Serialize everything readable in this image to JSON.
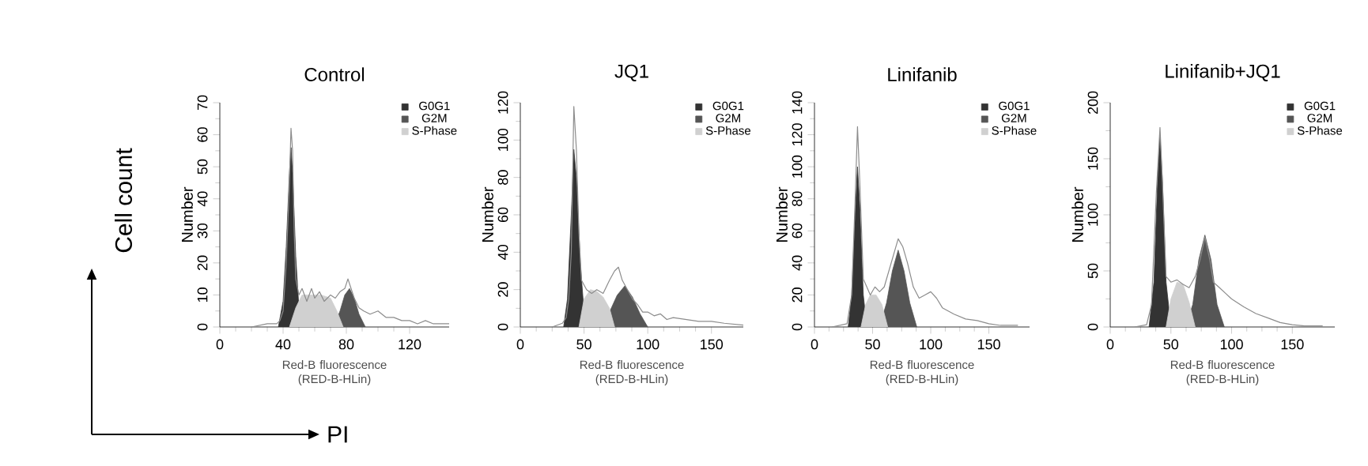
{
  "chart_data": [
    {
      "type": "area",
      "title": "Control",
      "xlabel": "Red-B fluorescence (RED-B-HLin)",
      "ylabel": "Number",
      "xlim": [
        0,
        145
      ],
      "ylim": [
        0,
        70
      ],
      "xticks": [
        0,
        40,
        80,
        120
      ],
      "yticks": [
        0,
        10,
        20,
        30,
        40,
        50,
        60,
        70
      ],
      "legend": "top right",
      "annotations": [
        "Cell count",
        "PI"
      ],
      "series": [
        {
          "name": "G0G1",
          "color": "#333333",
          "x": [
            37,
            40,
            42,
            44,
            45,
            46,
            48,
            50,
            52
          ],
          "values": [
            0,
            8,
            25,
            48,
            56,
            48,
            22,
            6,
            0
          ]
        },
        {
          "name": "G2M",
          "color": "#555555",
          "x": [
            72,
            76,
            79,
            82,
            85,
            88,
            92
          ],
          "values": [
            0,
            5,
            10,
            12,
            9,
            4,
            0
          ]
        },
        {
          "name": "S-Phase",
          "color": "#d0d0d0",
          "x": [
            44,
            48,
            52,
            58,
            64,
            70,
            74,
            78
          ],
          "values": [
            0,
            6,
            10,
            10,
            10,
            9,
            5,
            0
          ]
        },
        {
          "type": "line",
          "color": "#8c8c8c",
          "x": [
            20,
            30,
            36,
            38,
            40,
            42,
            44,
            45,
            46,
            47,
            48,
            50,
            52,
            55,
            58,
            60,
            63,
            66,
            70,
            73,
            76,
            79,
            81,
            83,
            85,
            88,
            91,
            95,
            100,
            105,
            110,
            115,
            120,
            125,
            130,
            135,
            145
          ],
          "values": [
            0,
            1,
            1,
            2,
            5,
            20,
            45,
            62,
            55,
            30,
            15,
            10,
            12,
            8,
            12,
            9,
            11,
            8,
            10,
            9,
            11,
            12,
            15,
            12,
            9,
            6,
            5,
            4,
            5,
            3,
            3,
            2,
            2,
            1,
            2,
            1,
            1
          ]
        }
      ]
    },
    {
      "type": "area",
      "title": "JQ1",
      "xlabel": "Red-B fluorescence (RED-B-HLin)",
      "ylabel": "Number",
      "xlim": [
        0,
        175
      ],
      "ylim": [
        0,
        120
      ],
      "xticks": [
        0,
        50,
        100,
        150
      ],
      "yticks": [
        0,
        20,
        40,
        60,
        80,
        100,
        120
      ],
      "legend": "top right",
      "series": [
        {
          "name": "G0G1",
          "color": "#333333",
          "x": [
            34,
            37,
            40,
            42,
            44,
            47,
            50,
            53
          ],
          "values": [
            0,
            15,
            60,
            95,
            80,
            35,
            8,
            0
          ]
        },
        {
          "name": "G2M",
          "color": "#555555",
          "x": [
            64,
            70,
            76,
            82,
            88,
            94,
            100
          ],
          "values": [
            0,
            8,
            17,
            22,
            16,
            7,
            0
          ]
        },
        {
          "name": "S-Phase",
          "color": "#d0d0d0",
          "x": [
            46,
            50,
            55,
            60,
            65,
            70,
            74
          ],
          "values": [
            0,
            15,
            20,
            19,
            16,
            10,
            0
          ]
        },
        {
          "type": "line",
          "color": "#8c8c8c",
          "x": [
            25,
            33,
            36,
            38,
            40,
            42,
            44,
            46,
            48,
            52,
            56,
            60,
            65,
            70,
            74,
            77,
            80,
            84,
            88,
            92,
            96,
            100,
            105,
            110,
            115,
            120,
            130,
            140,
            150,
            160,
            175
          ],
          "values": [
            0,
            2,
            5,
            15,
            40,
            118,
            95,
            50,
            25,
            20,
            18,
            20,
            18,
            25,
            30,
            32,
            25,
            20,
            15,
            12,
            8,
            8,
            6,
            7,
            4,
            5,
            4,
            3,
            3,
            2,
            1
          ]
        }
      ]
    },
    {
      "type": "area",
      "title": "Linifanib",
      "xlabel": "Red-B fluorescence (RED-B-HLin)",
      "ylabel": "Number",
      "xlim": [
        0,
        185
      ],
      "ylim": [
        0,
        140
      ],
      "xticks": [
        0,
        50,
        100,
        150
      ],
      "yticks": [
        0,
        20,
        40,
        60,
        80,
        100,
        120,
        140
      ],
      "legend": "top right",
      "series": [
        {
          "name": "G0G1",
          "color": "#333333",
          "x": [
            29,
            32,
            35,
            37,
            39,
            42,
            45
          ],
          "values": [
            0,
            20,
            70,
            100,
            75,
            20,
            0
          ]
        },
        {
          "name": "G2M",
          "color": "#555555",
          "x": [
            56,
            62,
            67,
            72,
            77,
            82,
            88
          ],
          "values": [
            0,
            15,
            35,
            48,
            35,
            15,
            0
          ]
        },
        {
          "name": "S-Phase",
          "color": "#d0d0d0",
          "x": [
            40,
            44,
            48,
            53,
            58,
            63
          ],
          "values": [
            0,
            14,
            20,
            20,
            14,
            0
          ]
        },
        {
          "type": "line",
          "color": "#8c8c8c",
          "x": [
            15,
            28,
            32,
            35,
            37,
            39,
            42,
            45,
            48,
            52,
            56,
            60,
            64,
            68,
            72,
            76,
            80,
            85,
            90,
            95,
            100,
            105,
            110,
            120,
            130,
            140,
            150,
            160,
            175
          ],
          "values": [
            0,
            2,
            20,
            80,
            125,
            90,
            30,
            25,
            20,
            25,
            22,
            25,
            35,
            45,
            55,
            50,
            40,
            25,
            18,
            20,
            22,
            18,
            12,
            8,
            5,
            4,
            2,
            1,
            1
          ]
        }
      ]
    },
    {
      "type": "area",
      "title": "Linifanib+JQ1",
      "xlabel": "Red-B fluorescence (RED-B-HLin)",
      "ylabel": "Number",
      "xlim": [
        0,
        185
      ],
      "ylim": [
        0,
        200
      ],
      "xticks": [
        0,
        50,
        100,
        150
      ],
      "yticks": [
        0,
        50,
        100,
        150,
        200
      ],
      "legend": "top right",
      "series": [
        {
          "name": "G0G1",
          "color": "#333333",
          "x": [
            32,
            36,
            39,
            41,
            43,
            46,
            50
          ],
          "values": [
            0,
            40,
            130,
            170,
            130,
            40,
            0
          ]
        },
        {
          "name": "G2M",
          "color": "#555555",
          "x": [
            62,
            68,
            73,
            78,
            83,
            88,
            94
          ],
          "values": [
            0,
            20,
            60,
            82,
            60,
            20,
            0
          ]
        },
        {
          "name": "S-Phase",
          "color": "#d0d0d0",
          "x": [
            46,
            50,
            55,
            60,
            65,
            70
          ],
          "values": [
            0,
            25,
            40,
            38,
            22,
            0
          ]
        },
        {
          "type": "line",
          "color": "#8c8c8c",
          "x": [
            20,
            30,
            34,
            38,
            41,
            43,
            46,
            50,
            55,
            60,
            65,
            70,
            74,
            78,
            82,
            85,
            90,
            95,
            100,
            110,
            120,
            130,
            140,
            150,
            160,
            175
          ],
          "values": [
            0,
            2,
            20,
            120,
            178,
            130,
            45,
            40,
            42,
            38,
            35,
            45,
            60,
            80,
            60,
            40,
            35,
            30,
            25,
            18,
            12,
            8,
            4,
            2,
            1,
            1
          ]
        }
      ]
    }
  ]
}
